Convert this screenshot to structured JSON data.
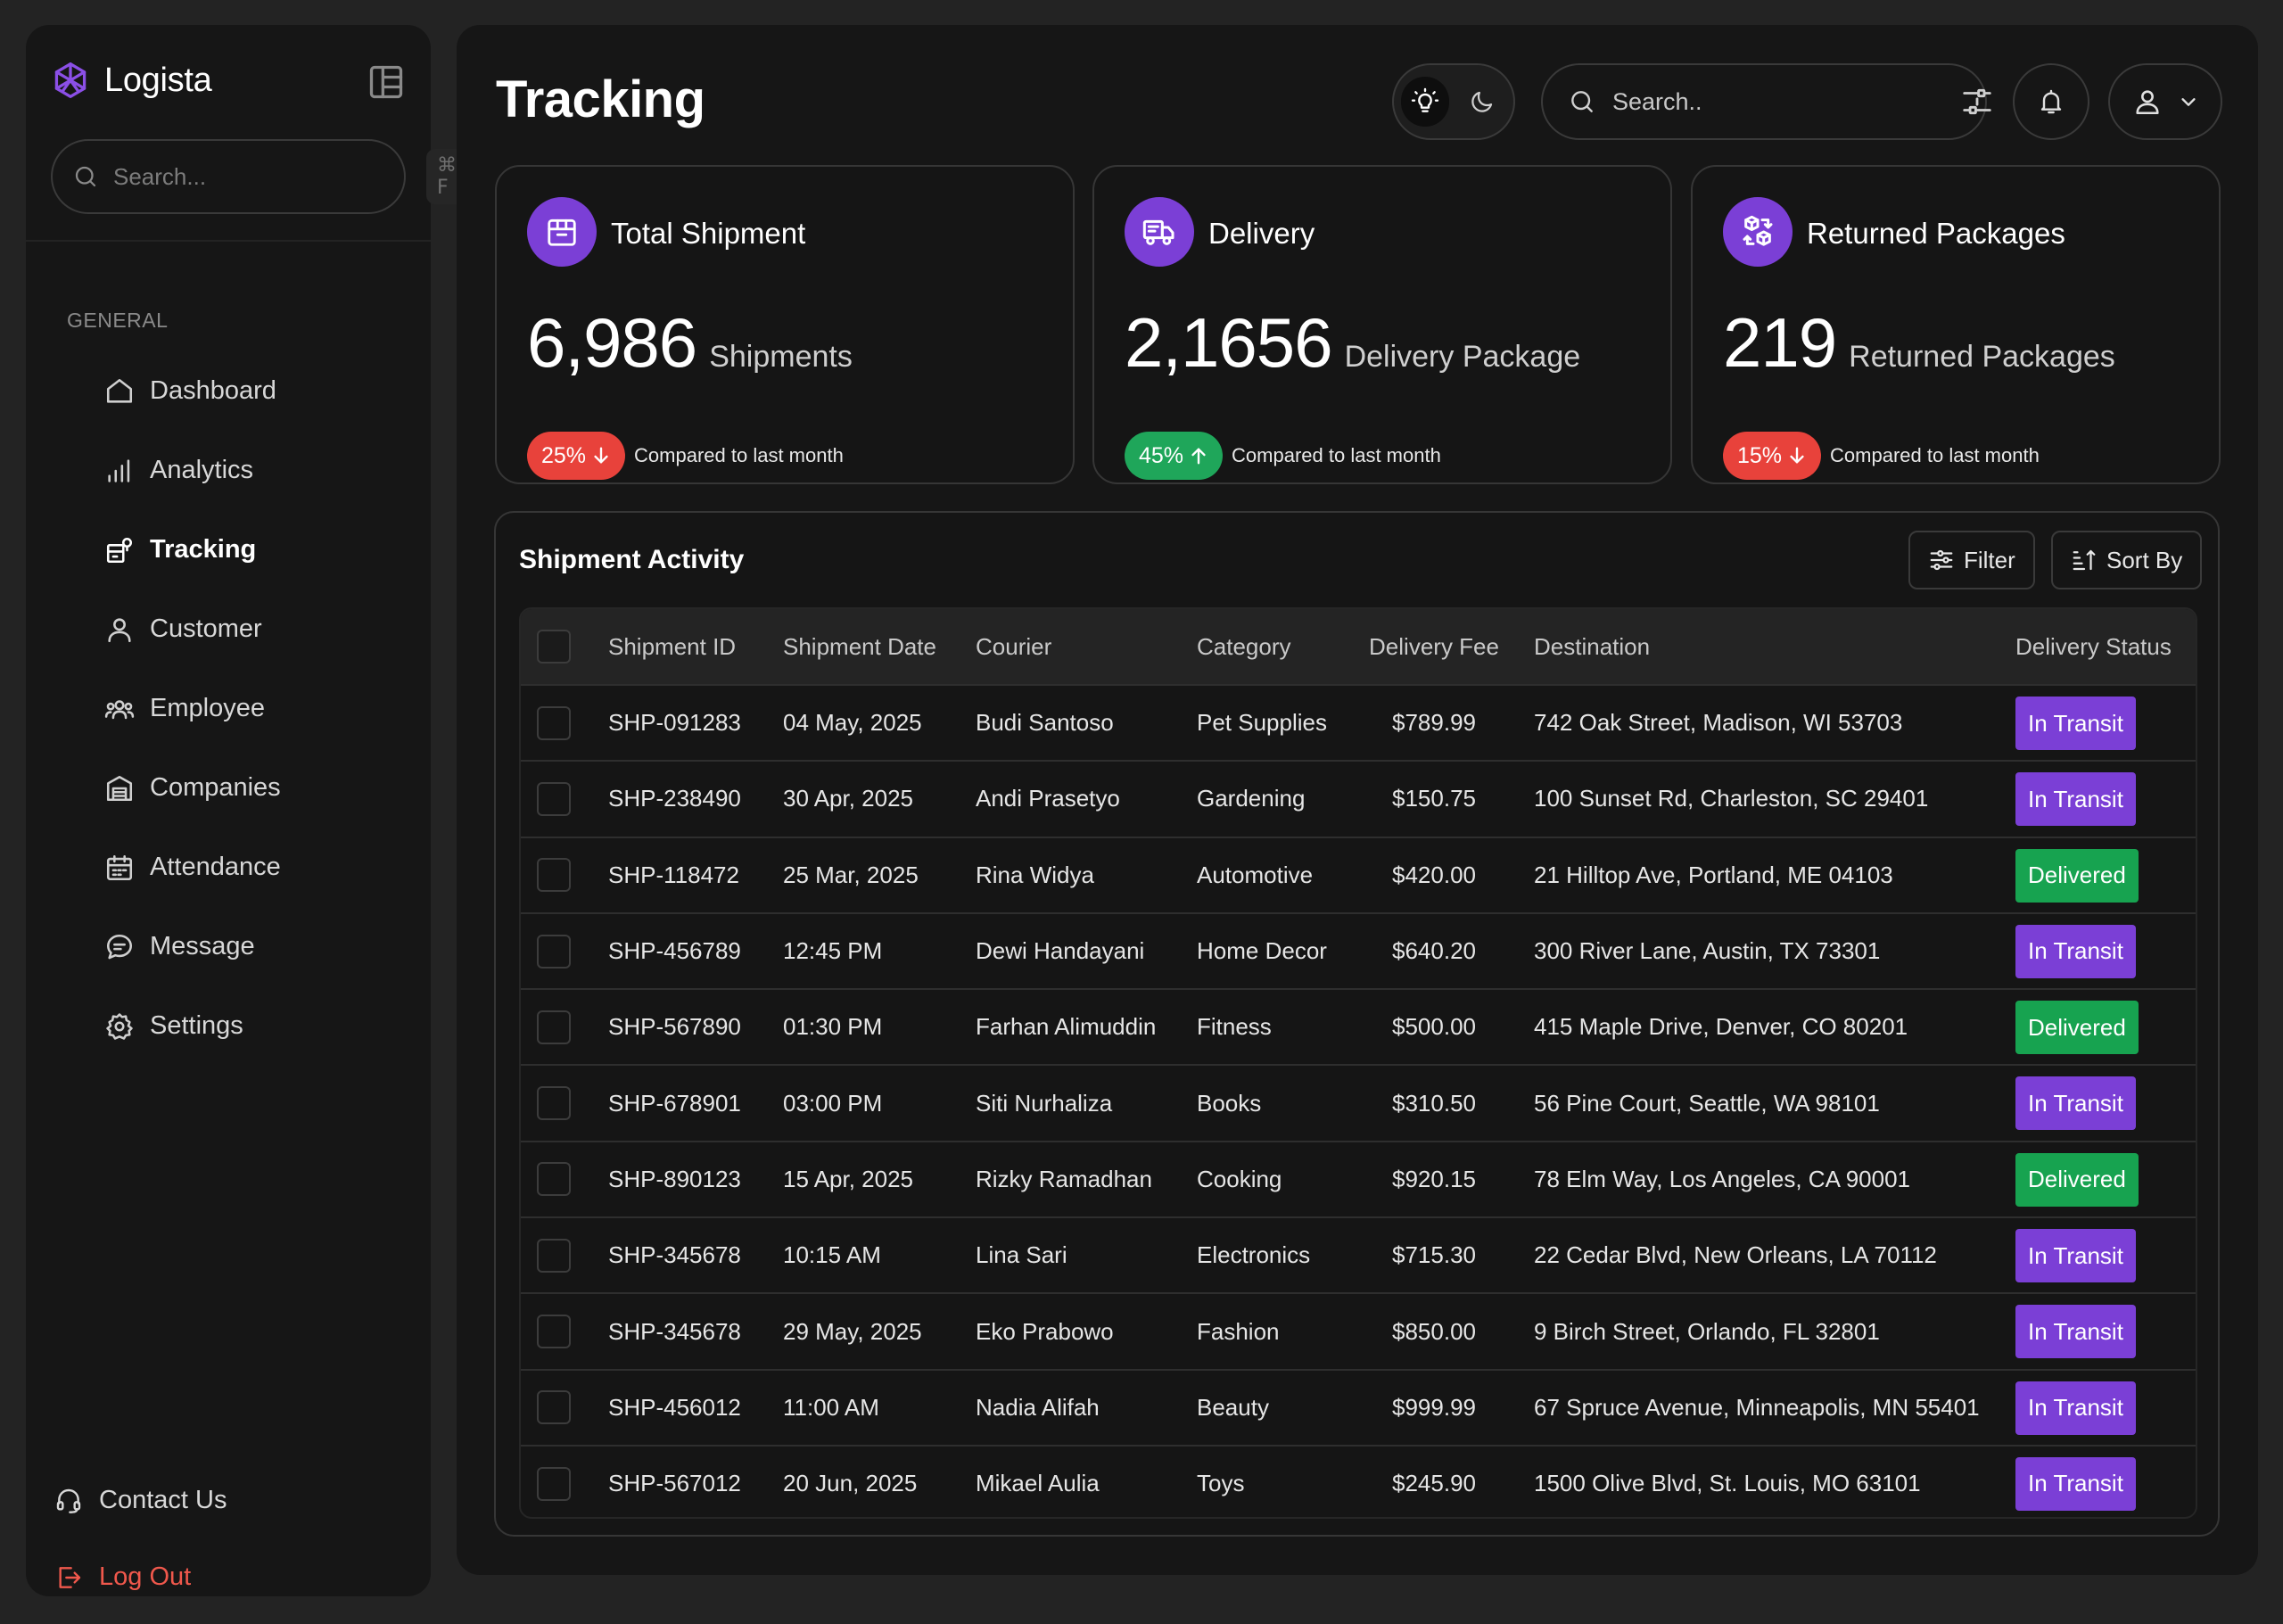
{
  "sidebar": {
    "brand": "Logista",
    "search_placeholder": "Search...",
    "search_shortcut": "⌘ F",
    "section_label": "GENERAL",
    "nav": [
      {
        "label": "Dashboard",
        "icon": "home-icon"
      },
      {
        "label": "Analytics",
        "icon": "bar-chart-icon"
      },
      {
        "label": "Tracking",
        "icon": "tracking-icon",
        "active": true
      },
      {
        "label": "Customer",
        "icon": "user-icon"
      },
      {
        "label": "Employee",
        "icon": "users-icon"
      },
      {
        "label": "Companies",
        "icon": "warehouse-icon"
      },
      {
        "label": "Attendance",
        "icon": "calendar-icon"
      },
      {
        "label": "Message",
        "icon": "chat-icon"
      },
      {
        "label": "Settings",
        "icon": "gear-icon"
      }
    ],
    "contact": "Contact Us",
    "logout": "Log Out"
  },
  "header": {
    "title": "Tracking",
    "search_placeholder": "Search..",
    "theme": {
      "light_icon": "bulb-icon",
      "dark_icon": "moon-icon",
      "selected": "light"
    }
  },
  "cards": [
    {
      "title": "Total Shipment",
      "value": "6,986",
      "unit": "Shipments",
      "change": "25%",
      "direction": "down",
      "compare": "Compared to last month",
      "icon": "package-icon"
    },
    {
      "title": "Delivery",
      "value": "2,1656",
      "unit": "Delivery Package",
      "change": "45%",
      "direction": "up",
      "compare": "Compared to last month",
      "icon": "truck-icon"
    },
    {
      "title": "Returned Packages",
      "value": "219",
      "unit": "Returned Packages",
      "change": "15%",
      "direction": "down",
      "compare": "Compared to last month",
      "icon": "return-icon"
    }
  ],
  "activity": {
    "title": "Shipment Activity",
    "filter_label": "Filter",
    "sort_label": "Sort By",
    "columns": [
      "Shipment ID",
      "Shipment Date",
      "Courier",
      "Category",
      "Delivery Fee",
      "Destination",
      "Delivery Status"
    ],
    "rows": [
      {
        "id": "SHP-091283",
        "date": "04 May, 2025",
        "courier": "Budi Santoso",
        "category": "Pet Supplies",
        "fee": "$789.99",
        "destination": "742 Oak Street, Madison, WI 53703",
        "status": "In Transit"
      },
      {
        "id": "SHP-238490",
        "date": "30 Apr, 2025",
        "courier": "Andi Prasetyo",
        "category": "Gardening",
        "fee": "$150.75",
        "destination": "100 Sunset Rd, Charleston, SC 29401",
        "status": "In Transit"
      },
      {
        "id": "SHP-118472",
        "date": "25 Mar, 2025",
        "courier": "Rina Widya",
        "category": "Automotive",
        "fee": "$420.00",
        "destination": "21 Hilltop Ave, Portland, ME 04103",
        "status": "Delivered"
      },
      {
        "id": "SHP-456789",
        "date": "12:45 PM",
        "courier": "Dewi Handayani",
        "category": "Home Decor",
        "fee": "$640.20",
        "destination": "300 River Lane, Austin, TX 73301",
        "status": "In Transit"
      },
      {
        "id": "SHP-567890",
        "date": "01:30 PM",
        "courier": "Farhan Alimuddin",
        "category": "Fitness",
        "fee": "$500.00",
        "destination": "415 Maple Drive, Denver, CO 80201",
        "status": "Delivered"
      },
      {
        "id": "SHP-678901",
        "date": "03:00 PM",
        "courier": "Siti Nurhaliza",
        "category": "Books",
        "fee": "$310.50",
        "destination": "56 Pine Court, Seattle, WA 98101",
        "status": "In Transit"
      },
      {
        "id": "SHP-890123",
        "date": "15 Apr, 2025",
        "courier": "Rizky Ramadhan",
        "category": "Cooking",
        "fee": "$920.15",
        "destination": "78 Elm Way, Los Angeles, CA 90001",
        "status": "Delivered"
      },
      {
        "id": "SHP-345678",
        "date": "10:15 AM",
        "courier": "Lina Sari",
        "category": "Electronics",
        "fee": "$715.30",
        "destination": "22 Cedar Blvd, New Orleans, LA 70112",
        "status": "In Transit"
      },
      {
        "id": "SHP-345678",
        "date": "29 May, 2025",
        "courier": "Eko Prabowo",
        "category": "Fashion",
        "fee": "$850.00",
        "destination": "9 Birch Street, Orlando, FL 32801",
        "status": "In Transit"
      },
      {
        "id": "SHP-456012",
        "date": "11:00 AM",
        "courier": "Nadia Alifah",
        "category": "Beauty",
        "fee": "$999.99",
        "destination": "67 Spruce Avenue, Minneapolis, MN 55401",
        "status": "In Transit"
      },
      {
        "id": "SHP-567012",
        "date": "20 Jun, 2025",
        "courier": "Mikael Aulia",
        "category": "Toys",
        "fee": "$245.90",
        "destination": "1500 Olive Blvd, St. Louis, MO 63101",
        "status": "In Transit"
      }
    ]
  },
  "colors": {
    "accent": "#7b3fd6",
    "success": "#17a350",
    "danger": "#e8423b",
    "logout": "#f0584c"
  }
}
